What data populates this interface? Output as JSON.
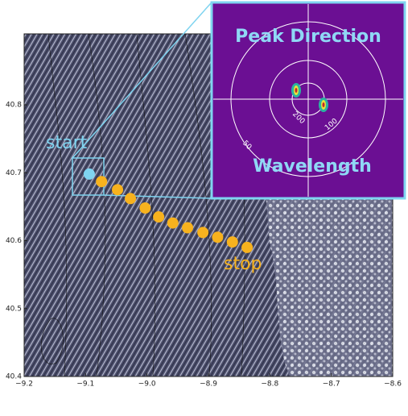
{
  "chart_data": {
    "type": "scatter",
    "xlim": [
      -9.2,
      -8.6
    ],
    "ylim": [
      40.4,
      40.88
    ],
    "xticks": [
      {
        "value": -9.2,
        "label": "−9.2"
      },
      {
        "value": -9.1,
        "label": "−9.1"
      },
      {
        "value": -9.0,
        "label": "−9.0"
      },
      {
        "value": -8.9,
        "label": "−8.9"
      },
      {
        "value": -8.8,
        "label": "−8.8"
      },
      {
        "value": -8.7,
        "label": "−8.7"
      },
      {
        "value": -8.6,
        "label": "−8.6"
      }
    ],
    "yticks": [
      40.4,
      40.5,
      40.6,
      40.7,
      40.8
    ],
    "series": [
      {
        "color": "#7fd4f0",
        "x": [
          -9.094
        ],
        "y": [
          40.698
        ]
      },
      {
        "color": "#f7b21e",
        "x": [
          -9.074,
          -9.048,
          -9.027,
          -9.003,
          -8.981,
          -8.958,
          -8.934,
          -8.909,
          -8.885,
          -8.861,
          -8.837
        ],
        "y": [
          40.687,
          40.675,
          40.662,
          40.648,
          40.635,
          40.626,
          40.619,
          40.612,
          40.605,
          40.598,
          40.59
        ]
      }
    ],
    "annotations": [
      {
        "text": "start",
        "color": "#7fd4f0"
      },
      {
        "text": "stop",
        "color": "#f7b21e"
      }
    ],
    "inset": {
      "title": "Peak Direction",
      "subtitle": "Wavelength",
      "ring_labels": [
        "200",
        "100",
        "50"
      ]
    }
  }
}
